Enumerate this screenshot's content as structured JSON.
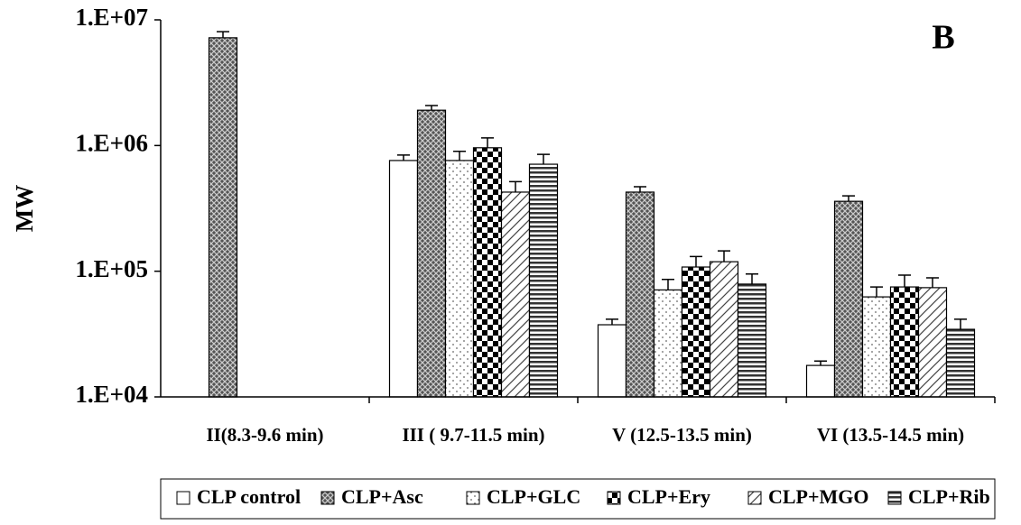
{
  "chart_data": {
    "type": "bar",
    "y_label": "MW",
    "annotation": "B",
    "categories": [
      "II(8.3-9.6 min)",
      "III (  9.7-11.5 min)",
      "V (12.5-13.5 min)",
      "VI (13.5-14.5 min)"
    ],
    "log_scale": true,
    "ylim": [
      10000,
      10000000
    ],
    "yticks": [
      {
        "value": 10000,
        "label": "1.E+04"
      },
      {
        "value": 100000,
        "label": "1.E+05"
      },
      {
        "value": 1000000,
        "label": "1.E+06"
      },
      {
        "value": 10000000,
        "label": "1.E+07"
      }
    ],
    "series": [
      {
        "name": "CLP control",
        "color": "#ffffff",
        "pattern": "none",
        "values": [
          null,
          760000,
          37500,
          17800
        ],
        "errors": [
          null,
          80000,
          4000,
          1500
        ]
      },
      {
        "name": "CLP+Asc",
        "color": "#ffffff",
        "pattern": "crosshatch",
        "values": [
          7200000,
          1910000,
          426000,
          360000
        ],
        "errors": [
          850000,
          170000,
          44000,
          38000
        ]
      },
      {
        "name": "CLP+GLC",
        "color": "#ffffff",
        "pattern": "dots",
        "values": [
          null,
          760000,
          71000,
          62500
        ],
        "errors": [
          null,
          140000,
          15000,
          12500
        ]
      },
      {
        "name": "CLP+Ery",
        "color": "#ffffff",
        "pattern": "checker",
        "values": [
          null,
          960000,
          108000,
          75000
        ],
        "errors": [
          null,
          190000,
          23000,
          18000
        ]
      },
      {
        "name": "CLP+MGO",
        "color": "#ffffff",
        "pattern": "diagonal",
        "values": [
          null,
          426000,
          119000,
          74000
        ],
        "errors": [
          null,
          90000,
          26000,
          14500
        ]
      },
      {
        "name": "CLP+Rib",
        "color": "#ffffff",
        "pattern": "hlines",
        "values": [
          null,
          710000,
          79000,
          34500
        ],
        "errors": [
          null,
          140000,
          16000,
          7000
        ]
      }
    ]
  }
}
